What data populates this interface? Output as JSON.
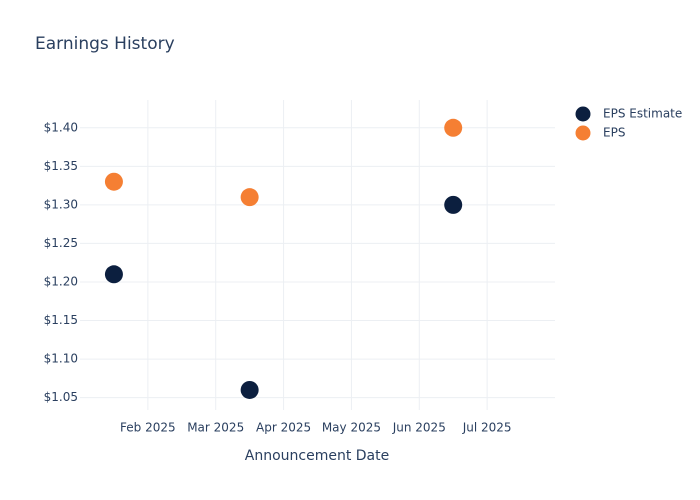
{
  "chart_data": {
    "type": "scatter",
    "title": "Earnings History",
    "x_label": "Announcement Date",
    "x": [
      "2025-01",
      "2025-03",
      "2025-06"
    ],
    "series": [
      {
        "name": "EPS Estimate",
        "color": "#0c1f3f",
        "values": [
          1.21,
          1.06,
          1.3
        ]
      },
      {
        "name": "EPS",
        "color": "#f57f33",
        "values": [
          1.33,
          1.31,
          1.4
        ]
      }
    ],
    "xlim": [
      "2025-01",
      "2025-07"
    ],
    "xticks": [
      {
        "value": "2025-02",
        "label": "Feb 2025"
      },
      {
        "value": "2025-03",
        "label": "Mar 2025"
      },
      {
        "value": "2025-04",
        "label": "Apr 2025"
      },
      {
        "value": "2025-05",
        "label": "May 2025"
      },
      {
        "value": "2025-06",
        "label": "Jun 2025"
      },
      {
        "value": "2025-07",
        "label": "Jul 2025"
      }
    ],
    "ylim": [
      1.034,
      1.436
    ],
    "yticks": [
      {
        "value": 1.05,
        "label": "$1.05"
      },
      {
        "value": 1.1,
        "label": "$1.10"
      },
      {
        "value": 1.15,
        "label": "$1.15"
      },
      {
        "value": 1.2,
        "label": "$1.20"
      },
      {
        "value": 1.25,
        "label": "$1.25"
      },
      {
        "value": 1.3,
        "label": "$1.30"
      },
      {
        "value": 1.35,
        "label": "$1.35"
      },
      {
        "value": 1.4,
        "label": "$1.40"
      }
    ],
    "grid": true,
    "legend": "right"
  }
}
